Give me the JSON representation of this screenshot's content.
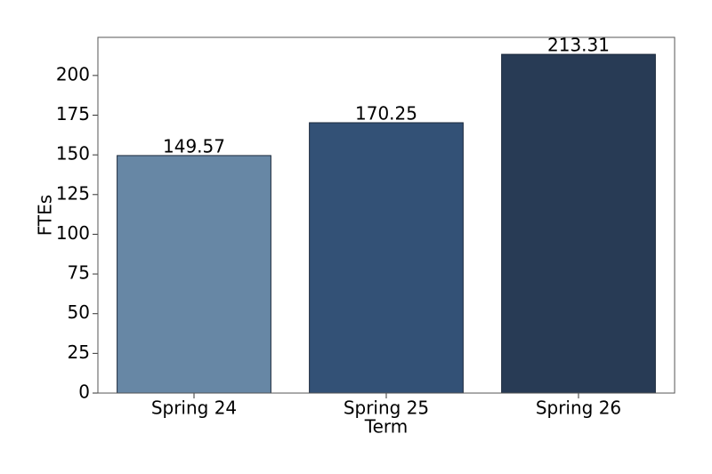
{
  "chart_data": {
    "type": "bar",
    "x_label": "Term",
    "y_label": "FTEs",
    "categories": [
      "Spring 24",
      "Spring 25",
      "Spring 26"
    ],
    "values": [
      149.57,
      170.25,
      213.31
    ],
    "colors": [
      "#6787a5",
      "#335176",
      "#283b55"
    ],
    "ylim": [
      0,
      224
    ],
    "yticks": [
      0,
      25,
      50,
      75,
      100,
      125,
      150,
      175,
      200
    ],
    "grid": false
  }
}
